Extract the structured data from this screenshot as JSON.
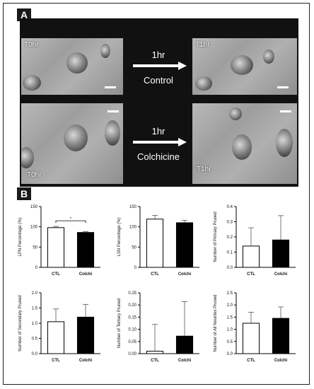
{
  "panels": {
    "a_label": "A",
    "b_label": "B"
  },
  "panel_a": {
    "images": [
      {
        "time_label": "T0hr"
      },
      {
        "time_label": "T1hr"
      },
      {
        "time_label": "T0hr"
      },
      {
        "time_label": "T1hr"
      }
    ],
    "arrows": [
      {
        "duration": "1hr",
        "treatment": "Control"
      },
      {
        "duration": "1hr",
        "treatment": "Colchicine"
      }
    ]
  },
  "colors": {
    "ctl_fill": "#ffffff",
    "colchi_fill": "#000000",
    "axis": "#000000"
  },
  "chart_data": [
    {
      "type": "bar",
      "categories": [
        "CTL",
        "Colchi"
      ],
      "values": [
        98,
        86
      ],
      "errors": [
        3,
        2
      ],
      "ylabel": "LPN Percentage (%)",
      "ylim": [
        0,
        150
      ],
      "yticks": [
        "0",
        "50",
        "100",
        "150"
      ],
      "yticks_values": [
        0,
        50,
        100,
        150
      ],
      "significance": "*"
    },
    {
      "type": "bar",
      "categories": [
        "CTL",
        "Colchi"
      ],
      "values": [
        119,
        110
      ],
      "errors": [
        9,
        6
      ],
      "ylabel": "LSN Percentage (%)",
      "ylim": [
        0,
        150
      ],
      "yticks": [
        "0",
        "50",
        "100",
        "150"
      ],
      "yticks_values": [
        0,
        50,
        100,
        150
      ]
    },
    {
      "type": "bar",
      "categories": [
        "CTL",
        "Colchi"
      ],
      "values": [
        0.14,
        0.18
      ],
      "errors": [
        0.12,
        0.16
      ],
      "ylabel": "Number of Primary Pruned",
      "ylim": [
        0,
        0.4
      ],
      "yticks": [
        "0.0",
        "0.1",
        "0.2",
        "0.3",
        "0.4"
      ],
      "yticks_values": [
        0,
        0.1,
        0.2,
        0.3,
        0.4
      ]
    },
    {
      "type": "bar",
      "categories": [
        "CTL",
        "Colchi"
      ],
      "values": [
        1.05,
        1.2
      ],
      "errors": [
        0.42,
        0.42
      ],
      "ylabel": "Number of Secondary Pruned",
      "ylim": [
        0,
        2.0
      ],
      "yticks": [
        "0.0",
        "0.5",
        "1.0",
        "1.5",
        "2.0"
      ],
      "yticks_values": [
        0,
        0.5,
        1.0,
        1.5,
        2.0
      ]
    },
    {
      "type": "bar",
      "categories": [
        "CTL",
        "Colchi"
      ],
      "values": [
        0.01,
        0.072
      ],
      "errors": [
        0.11,
        0.142
      ],
      "ylabel": "Number of Tertiary Pruned",
      "ylim": [
        0,
        0.25
      ],
      "yticks": [
        "0.00",
        "0.05",
        "0.10",
        "0.15",
        "0.20",
        "0.25"
      ],
      "yticks_values": [
        0,
        0.05,
        0.1,
        0.15,
        0.2,
        0.25
      ]
    },
    {
      "type": "bar",
      "categories": [
        "CTL",
        "Colchi"
      ],
      "values": [
        1.25,
        1.45
      ],
      "errors": [
        0.45,
        0.47
      ],
      "ylabel": "Number of All Neurites Pruned",
      "ylim": [
        0,
        2.5
      ],
      "yticks": [
        "0.0",
        "0.5",
        "1.0",
        "1.5",
        "2.0",
        "2.5"
      ],
      "yticks_values": [
        0,
        0.5,
        1.0,
        1.5,
        2.0,
        2.5
      ]
    }
  ]
}
